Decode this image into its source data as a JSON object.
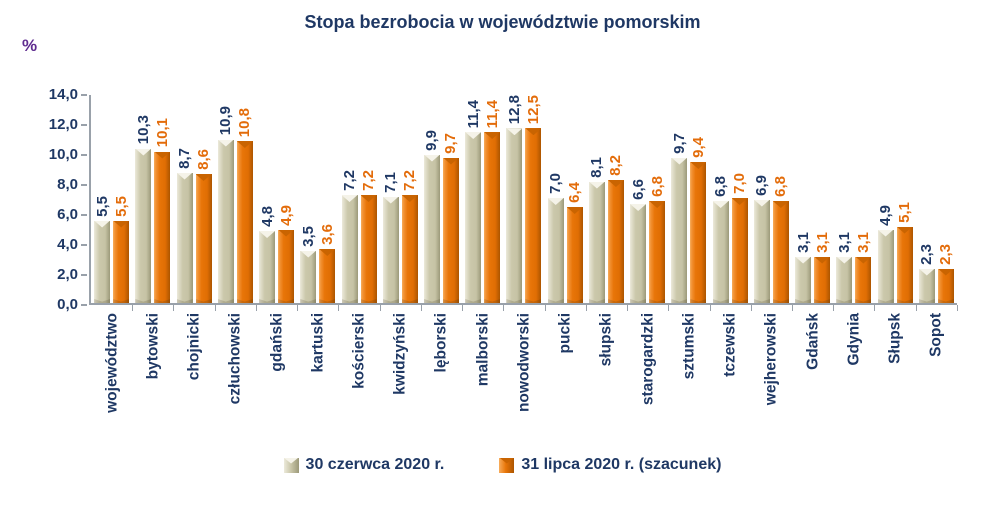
{
  "chart": {
    "title": "Stopa bezrobocia w województwie pomorskim",
    "unit_label": "%"
  },
  "legend": {
    "items": [
      {
        "label": "30 czerwca 2020 r."
      },
      {
        "label": "31 lipca 2020 r. (szacunek)"
      }
    ]
  },
  "chart_data": {
    "type": "bar",
    "title": "Stopa bezrobocia w województwie pomorskim",
    "xlabel": "",
    "ylabel": "%",
    "ylim": [
      0,
      14
    ],
    "grid": false,
    "legend_position": "bottom",
    "y_ticks": [
      {
        "value": 0,
        "label": "0,0"
      },
      {
        "value": 2,
        "label": "2,0"
      },
      {
        "value": 4,
        "label": "4,0"
      },
      {
        "value": 6,
        "label": "6,0"
      },
      {
        "value": 8,
        "label": "8,0"
      },
      {
        "value": 10,
        "label": "10,0"
      },
      {
        "value": 12,
        "label": "12,0"
      },
      {
        "value": 14,
        "label": "14,0"
      }
    ],
    "categories": [
      "województwo",
      "bytowski",
      "chojnicki",
      "człuchowski",
      "gdański",
      "kartuski",
      "kościerski",
      "kwidzyński",
      "lęborski",
      "malborski",
      "nowodworski",
      "pucki",
      "słupski",
      "starogardzki",
      "sztumski",
      "tczewski",
      "wejherowski",
      "Gdańsk",
      "Gdynia",
      "Słupsk",
      "Sopot"
    ],
    "series": [
      {
        "name": "30 czerwca 2020 r.",
        "color": "#CBC8AB",
        "values": [
          5.5,
          10.3,
          8.7,
          10.9,
          4.8,
          3.5,
          7.2,
          7.1,
          9.9,
          11.4,
          12.8,
          7.0,
          8.1,
          6.6,
          9.7,
          6.8,
          6.9,
          3.1,
          3.1,
          4.9,
          2.3
        ],
        "labels": [
          "5,5",
          "10,3",
          "8,7",
          "10,9",
          "4,8",
          "3,5",
          "7,2",
          "7,1",
          "9,9",
          "11,4",
          "12,8",
          "7,0",
          "8,1",
          "6,6",
          "9,7",
          "6,8",
          "6,9",
          "3,1",
          "3,1",
          "4,9",
          "2,3"
        ]
      },
      {
        "name": "31 lipca 2020 r. (szacunek)",
        "color": "#E87508",
        "values": [
          5.5,
          10.1,
          8.6,
          10.8,
          4.9,
          3.6,
          7.2,
          7.2,
          9.7,
          11.4,
          12.5,
          6.4,
          8.2,
          6.8,
          9.4,
          7.0,
          6.8,
          3.1,
          3.1,
          5.1,
          2.3
        ],
        "labels": [
          "5,5",
          "10,1",
          "8,6",
          "10,8",
          "4,9",
          "3,6",
          "7,2",
          "7,2",
          "9,7",
          "11,4",
          "12,5",
          "6,4",
          "8,2",
          "6,8",
          "9,4",
          "7,0",
          "6,8",
          "3,1",
          "3,1",
          "5,1",
          "2,3"
        ]
      }
    ]
  }
}
